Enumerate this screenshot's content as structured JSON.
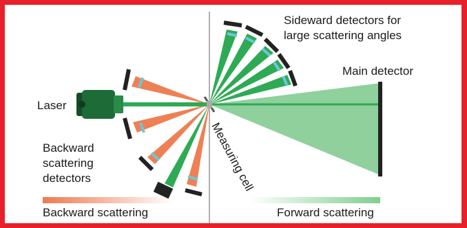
{
  "labels": {
    "sideward": [
      "Sideward detectors for",
      "large scattering angles"
    ],
    "main_detector": "Main detector",
    "laser": "Laser",
    "backward_detectors": [
      "Backward",
      "scattering",
      "detectors"
    ],
    "measuring_cell": "Measuring cell",
    "backward_scattering": "Backward scattering",
    "forward_scattering": "Forward scattering"
  },
  "colors": {
    "frame": "#e8202a",
    "background": "#ffffff",
    "forward_beam": "#2eaa55",
    "forward_fan": "#8fd09d",
    "backward_beam": "#ee8055",
    "laser_body": "#1d6b36",
    "detector": "#222222",
    "lens": "#6dc6da",
    "cell": "#aaaaaa"
  },
  "icons": {
    "laser": "laser-icon",
    "detector": "detector-icon",
    "measuring_cell": "cuvette-icon"
  }
}
